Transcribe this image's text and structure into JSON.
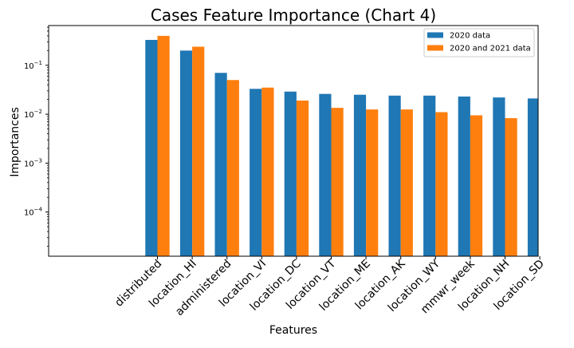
{
  "chart_data": {
    "type": "bar",
    "title": "Cases Feature Importance (Chart 4)",
    "xlabel": "Features",
    "ylabel": "Importances",
    "yscale": "log",
    "ylim": [
      1.25e-05,
      0.65
    ],
    "y_ticks": [
      {
        "value": 0.0001,
        "base": "10",
        "exp": "−4"
      },
      {
        "value": 0.001,
        "base": "10",
        "exp": "−3"
      },
      {
        "value": 0.01,
        "base": "10",
        "exp": "−2"
      },
      {
        "value": 0.1,
        "base": "10",
        "exp": "−1"
      }
    ],
    "categories": [
      "distributed",
      "location_HI",
      "administered",
      "location_VI",
      "location_DC",
      "location_VT",
      "location_ME",
      "location_AK",
      "location_WY",
      "mmwr_week",
      "location_NH",
      "location_SD"
    ],
    "series": [
      {
        "name": "2020 data",
        "color": "#1f77b4",
        "values": [
          0.33,
          0.2,
          0.07,
          0.033,
          0.029,
          0.026,
          0.025,
          0.024,
          0.024,
          0.023,
          0.022,
          0.021
        ]
      },
      {
        "name": "2020 and 2021 data",
        "color": "#ff7f0e",
        "values": [
          0.4,
          0.24,
          0.05,
          0.035,
          0.019,
          0.0135,
          0.0125,
          0.0125,
          0.011,
          0.0095,
          0.0083,
          null
        ]
      }
    ],
    "legend_position": "top-right",
    "grid": false
  }
}
